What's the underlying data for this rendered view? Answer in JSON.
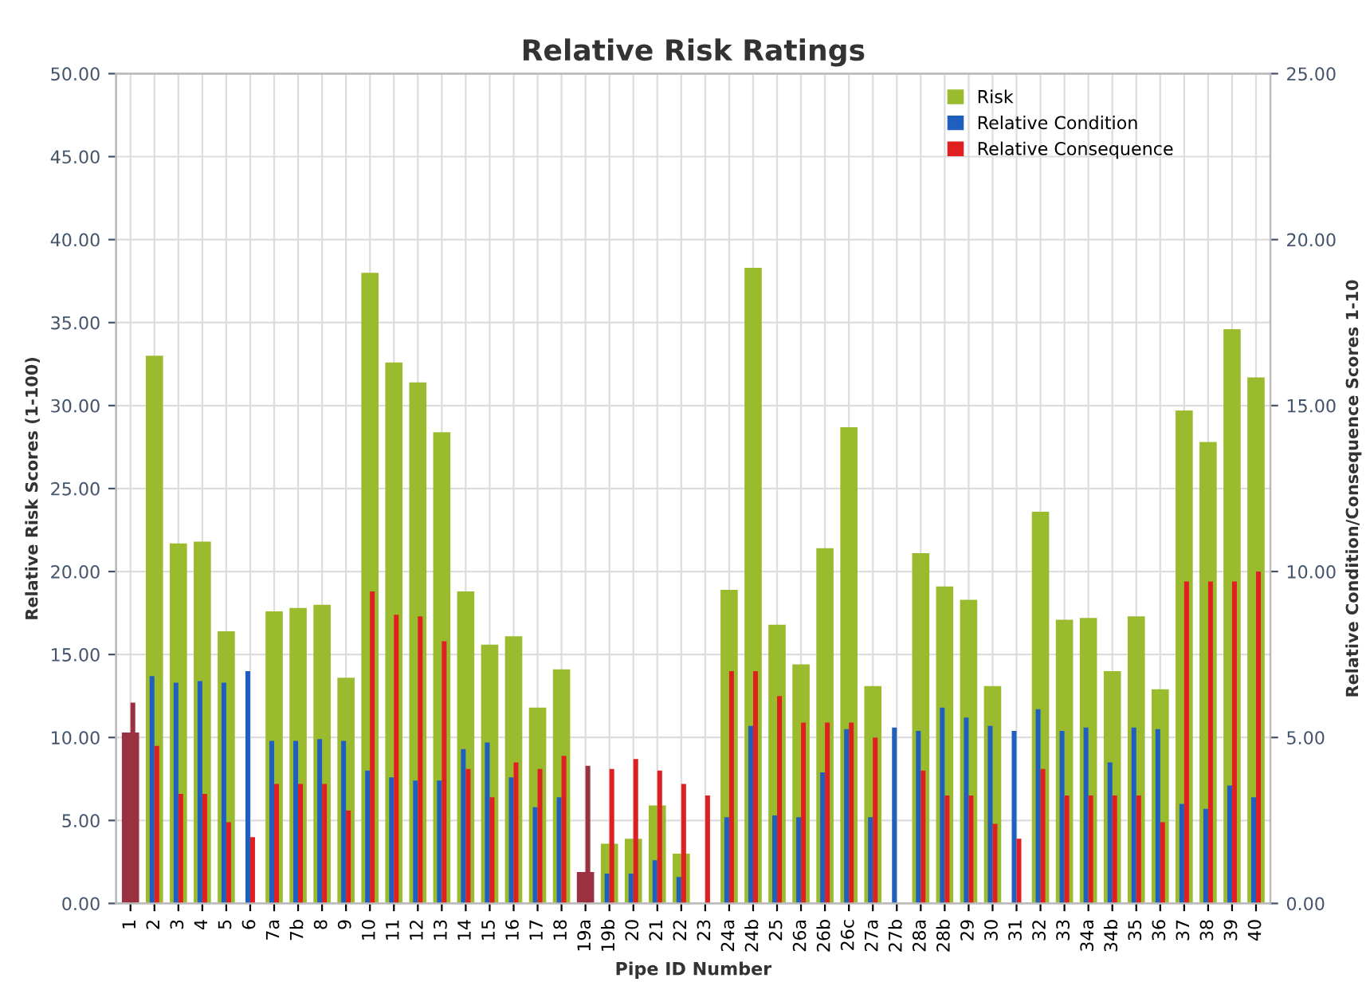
{
  "chart_data": {
    "type": "bar",
    "title": "Relative Risk Ratings",
    "xlabel": "Pipe ID Number",
    "ylabel": "Relative Risk Scores (1-100)",
    "y2label": "Relative Condition/Consequence Scores 1-10",
    "categories": [
      "1",
      "2",
      "3",
      "4",
      "5",
      "6",
      "7a",
      "7b",
      "8",
      "9",
      "10",
      "11",
      "12",
      "13",
      "14",
      "15",
      "16",
      "17",
      "18",
      "19a",
      "19b",
      "20",
      "21",
      "22",
      "23",
      "24a",
      "24b",
      "25",
      "26a",
      "26b",
      "26c",
      "27a",
      "27b",
      "28a",
      "28b",
      "29",
      "30",
      "31",
      "32",
      "33",
      "34a",
      "34b",
      "35",
      "36",
      "37",
      "38",
      "39",
      "40"
    ],
    "series": [
      {
        "name": "Risk",
        "color": "#9bbb2f",
        "colors": [
          "#9b3040",
          "#9bbb2f",
          "#9bbb2f",
          "#9bbb2f",
          "#9bbb2f",
          "#9bbb2f",
          "#9bbb2f",
          "#9bbb2f",
          "#9bbb2f",
          "#9bbb2f",
          "#9bbb2f",
          "#9bbb2f",
          "#9bbb2f",
          "#9bbb2f",
          "#9bbb2f",
          "#9bbb2f",
          "#9bbb2f",
          "#9bbb2f",
          "#9bbb2f",
          "#9b3040",
          "#9bbb2f",
          "#9bbb2f",
          "#9bbb2f",
          "#9bbb2f",
          "#9bbb2f",
          "#9bbb2f",
          "#9bbb2f",
          "#9bbb2f",
          "#9bbb2f",
          "#9bbb2f",
          "#9bbb2f",
          "#9bbb2f",
          "#9bbb2f",
          "#9bbb2f",
          "#9bbb2f",
          "#9bbb2f",
          "#9bbb2f",
          "#9bbb2f",
          "#9bbb2f",
          "#9bbb2f",
          "#9bbb2f",
          "#9bbb2f",
          "#9bbb2f",
          "#9bbb2f",
          "#9bbb2f",
          "#9bbb2f",
          "#9bbb2f",
          "#9bbb2f"
        ],
        "values": [
          10.3,
          33.0,
          21.7,
          21.8,
          16.4,
          null,
          17.6,
          17.8,
          18.0,
          13.6,
          38.0,
          32.6,
          31.4,
          28.4,
          18.8,
          15.6,
          16.1,
          11.8,
          14.1,
          1.9,
          3.6,
          3.9,
          5.9,
          3.0,
          null,
          18.9,
          38.3,
          16.8,
          14.4,
          21.4,
          28.7,
          13.1,
          null,
          21.1,
          19.1,
          18.3,
          13.1,
          null,
          23.6,
          17.1,
          17.2,
          14.0,
          17.3,
          12.9,
          29.7,
          27.8,
          34.6,
          31.7
        ]
      },
      {
        "name": "Relative Condition",
        "color": "#1f5fbf",
        "axis": "y2",
        "values": [
          null,
          6.85,
          6.65,
          6.7,
          6.65,
          7.0,
          4.9,
          4.9,
          4.95,
          4.9,
          4.0,
          3.8,
          3.7,
          3.7,
          4.65,
          4.85,
          3.8,
          2.9,
          3.2,
          null,
          0.9,
          0.9,
          1.3,
          0.8,
          null,
          2.6,
          5.35,
          2.65,
          2.6,
          3.95,
          5.25,
          2.6,
          5.3,
          5.2,
          5.9,
          5.6,
          5.35,
          5.2,
          5.85,
          5.2,
          5.3,
          4.25,
          5.3,
          5.25,
          3.0,
          2.85,
          3.55,
          3.2
        ]
      },
      {
        "name": "Relative Consequence",
        "color": "#e02020",
        "axis": "y2",
        "colors": [
          "#9b3040",
          "#e02020",
          "#e02020",
          "#e02020",
          "#e02020",
          "#e02020",
          "#e02020",
          "#e02020",
          "#e02020",
          "#e02020",
          "#e02020",
          "#e02020",
          "#e02020",
          "#e02020",
          "#e02020",
          "#e02020",
          "#e02020",
          "#e02020",
          "#e02020",
          "#9b3040",
          "#e02020",
          "#e02020",
          "#e02020",
          "#e02020",
          "#e02020",
          "#e02020",
          "#e02020",
          "#e02020",
          "#e02020",
          "#e02020",
          "#e02020",
          "#e02020",
          "#e02020",
          "#e02020",
          "#e02020",
          "#e02020",
          "#e02020",
          "#e02020",
          "#e02020",
          "#e02020",
          "#e02020",
          "#e02020",
          "#e02020",
          "#e02020",
          "#e02020",
          "#e02020",
          "#e02020",
          "#e02020"
        ],
        "values": [
          6.05,
          4.75,
          3.3,
          3.3,
          2.45,
          2.0,
          3.6,
          3.6,
          3.6,
          2.8,
          9.4,
          8.7,
          8.65,
          7.9,
          4.05,
          3.2,
          4.25,
          4.05,
          4.45,
          4.15,
          4.05,
          4.35,
          4.0,
          3.6,
          3.25,
          7.0,
          7.0,
          6.25,
          5.45,
          5.45,
          5.45,
          5.0,
          null,
          4.0,
          3.25,
          3.25,
          2.4,
          1.95,
          4.05,
          3.25,
          3.25,
          3.25,
          3.25,
          2.45,
          9.7,
          9.7,
          9.7,
          10.0
        ]
      }
    ],
    "ylim": [
      0,
      50
    ],
    "yticks": [
      {
        "value": 0,
        "label": "0.00"
      },
      {
        "value": 5,
        "label": "5.00"
      },
      {
        "value": 10,
        "label": "10.00"
      },
      {
        "value": 15,
        "label": "15.00"
      },
      {
        "value": 20,
        "label": "20.00"
      },
      {
        "value": 25,
        "label": "25.00"
      },
      {
        "value": 30,
        "label": "30.00"
      },
      {
        "value": 35,
        "label": "35.00"
      },
      {
        "value": 40,
        "label": "40.00"
      },
      {
        "value": 45,
        "label": "45.00"
      },
      {
        "value": 50,
        "label": "50.00"
      }
    ],
    "y2lim": [
      0,
      25
    ],
    "y2ticks": [
      {
        "value": 0,
        "label": "0.00"
      },
      {
        "value": 5,
        "label": "5.00"
      },
      {
        "value": 10,
        "label": "10.00"
      },
      {
        "value": 15,
        "label": "15.00"
      },
      {
        "value": 20,
        "label": "20.00"
      },
      {
        "value": 25,
        "label": "25.00"
      }
    ],
    "grid": true,
    "legend": "top right"
  }
}
